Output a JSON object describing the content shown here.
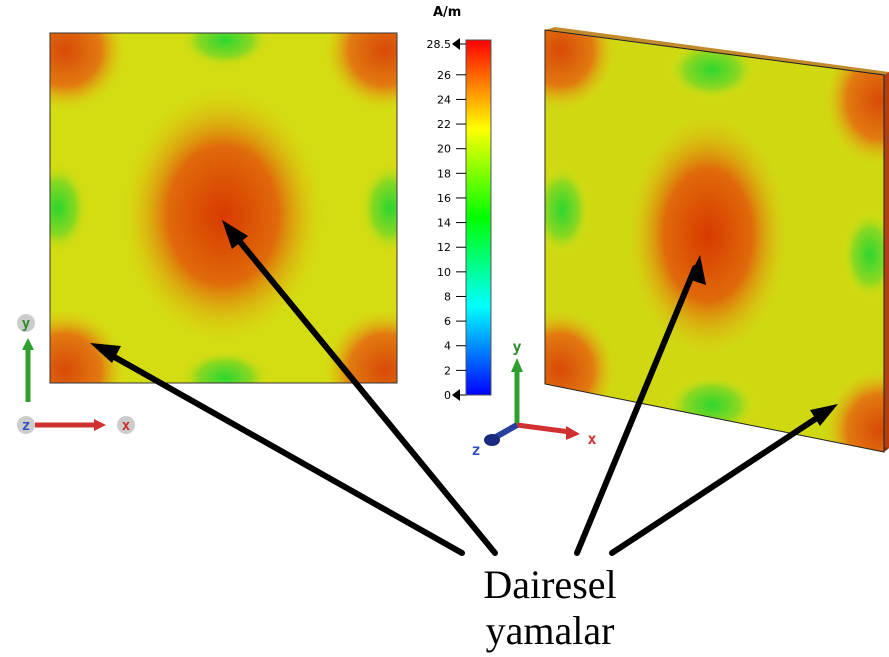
{
  "colorbar": {
    "unit": "A/m",
    "max_label": "28.5",
    "min": 0,
    "max": 28.5,
    "ticks": [
      "28.5",
      "26",
      "24",
      "22",
      "20",
      "18",
      "16",
      "14",
      "12",
      "10",
      "8",
      "6",
      "4",
      "2",
      "0"
    ],
    "tick_values": [
      28.5,
      26,
      24,
      22,
      20,
      18,
      16,
      14,
      12,
      10,
      8,
      6,
      4,
      2,
      0
    ],
    "colors": [
      "#0000ff",
      "#00ffff",
      "#00ff00",
      "#ffff00",
      "#ff0000"
    ]
  },
  "axes_2d": {
    "y_label": "y",
    "z_label": "z",
    "x_label": "x"
  },
  "axes_3d": {
    "y_label": "y",
    "z_label": "z",
    "x_label": "x"
  },
  "caption": {
    "line1": "Dairesel",
    "line2": "yamalar"
  }
}
